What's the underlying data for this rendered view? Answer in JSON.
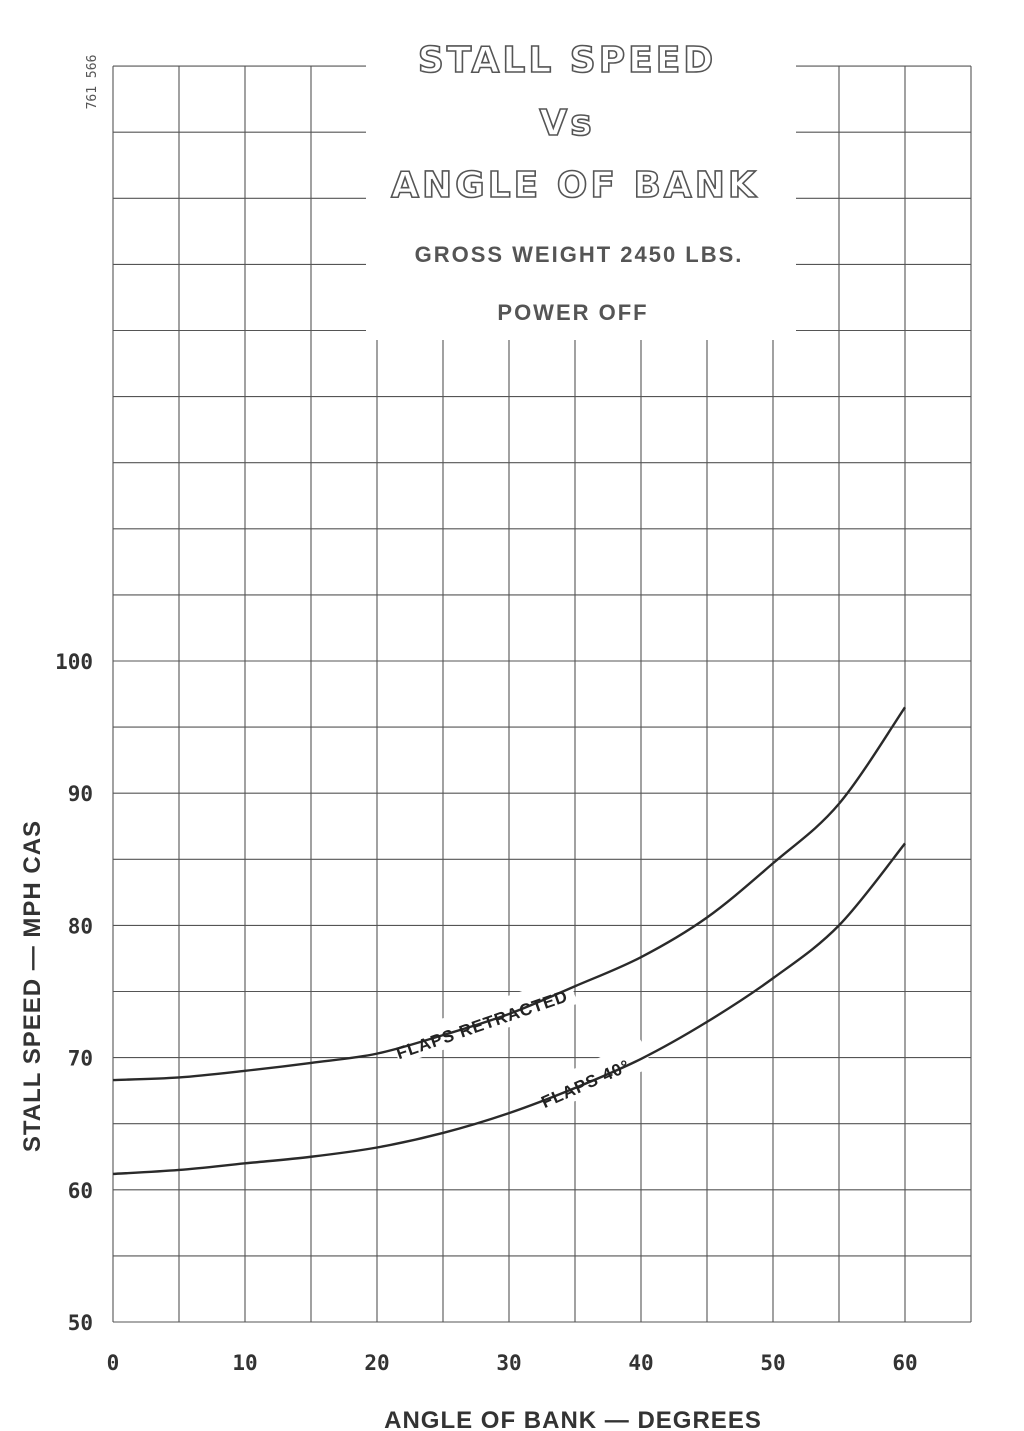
{
  "chart_data": {
    "type": "line",
    "title_lines": [
      "STALL SPEED",
      "Vs",
      "ANGLE OF BANK"
    ],
    "subtitle_lines": [
      "GROSS WEIGHT 2450 LBS.",
      "POWER OFF"
    ],
    "document_code": "761 566",
    "xlabel": "ANGLE OF BANK — DEGREES",
    "ylabel": "STALL SPEED — MPH CAS",
    "xlim": [
      0,
      65
    ],
    "ylim": [
      50,
      145
    ],
    "x_ticks": [
      "0",
      "10",
      "20",
      "30",
      "40",
      "50",
      "60"
    ],
    "y_ticks": [
      "50",
      "60",
      "70",
      "80",
      "90",
      "100"
    ],
    "grid": true,
    "series": [
      {
        "name": "FLAPS RETRACTED",
        "x": [
          0,
          5,
          10,
          15,
          20,
          25,
          30,
          35,
          40,
          45,
          50,
          55,
          60
        ],
        "y": [
          68.3,
          68.5,
          69.0,
          69.6,
          70.3,
          71.7,
          73.3,
          75.4,
          77.6,
          80.6,
          84.7,
          89.2,
          96.5
        ]
      },
      {
        "name": "FLAPS 40°",
        "x": [
          0,
          5,
          10,
          15,
          20,
          25,
          30,
          35,
          40,
          45,
          50,
          55,
          60
        ],
        "y": [
          61.2,
          61.5,
          62.0,
          62.5,
          63.2,
          64.3,
          65.8,
          67.7,
          69.9,
          72.7,
          76.0,
          80.0,
          86.2
        ]
      }
    ]
  }
}
